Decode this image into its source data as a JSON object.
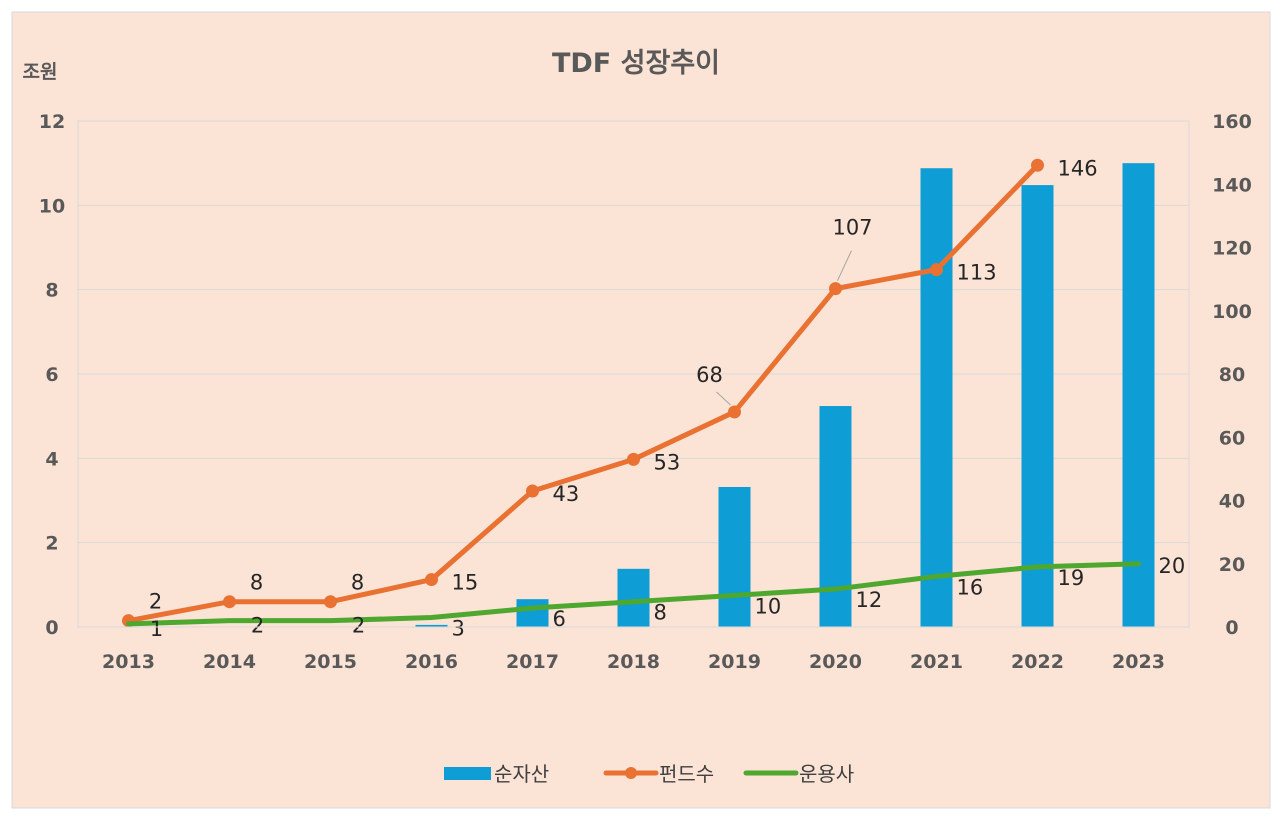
{
  "chart_data": {
    "type": "bar+line",
    "title": "TDF 성장추이",
    "ylabel": "조원",
    "ylabel_right": "",
    "categories": [
      "2013",
      "2014",
      "2015",
      "2016",
      "2017",
      "2018",
      "2019",
      "2020",
      "2021",
      "2022",
      "2023"
    ],
    "ylim": [
      0,
      12
    ],
    "yticks": [
      0,
      2,
      4,
      6,
      8,
      10,
      12
    ],
    "ylim_right": [
      0,
      160
    ],
    "yticks_right": [
      0,
      20,
      40,
      60,
      80,
      100,
      120,
      140,
      160
    ],
    "grid": true,
    "legend_position": "bottom",
    "series": [
      {
        "name": "순자산",
        "type": "bar",
        "axis": "left",
        "color": "#0E9ED5",
        "values": [
          0,
          0,
          0,
          0.05,
          0.66,
          1.38,
          3.32,
          5.24,
          10.88,
          10.48,
          11.0
        ]
      },
      {
        "name": "펀드수",
        "type": "line",
        "axis": "right",
        "color": "#E97132",
        "markers": true,
        "values": [
          2,
          8,
          8,
          15,
          43,
          53,
          68,
          107,
          113,
          146,
          null
        ],
        "data_labels": true
      },
      {
        "name": "운용사",
        "type": "line",
        "axis": "right",
        "color": "#4EA72E",
        "markers": false,
        "values": [
          1,
          2,
          2,
          3,
          6,
          8,
          10,
          12,
          16,
          19,
          20
        ],
        "data_labels": true
      }
    ]
  },
  "colors": {
    "background": "#FBE3D6",
    "gridline": "#D9D9D9"
  }
}
